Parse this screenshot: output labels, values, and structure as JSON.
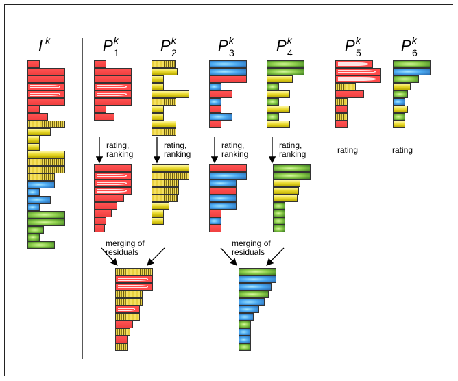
{
  "labels": {
    "I": {
      "base": "I",
      "sup": "k"
    },
    "P1": {
      "base": "P",
      "sub": "1",
      "sup": "k"
    },
    "P2": {
      "base": "P",
      "sub": "2",
      "sup": "k"
    },
    "P3": {
      "base": "P",
      "sub": "3",
      "sup": "k"
    },
    "P4": {
      "base": "P",
      "sub": "4",
      "sup": "k"
    },
    "P5": {
      "base": "P",
      "sub": "5",
      "sup": "k"
    },
    "P6": {
      "base": "P",
      "sub": "6",
      "sup": "k"
    }
  },
  "notes": {
    "rating_ranking": "rating,\nranking",
    "rating": "rating",
    "merging": "merging of\nresiduals"
  },
  "colors": {
    "red": "#ff4a4a",
    "yellow": "#e8d82a",
    "blue": "#4aa8f0",
    "green": "#8ccd4a",
    "border": "#333333"
  }
}
